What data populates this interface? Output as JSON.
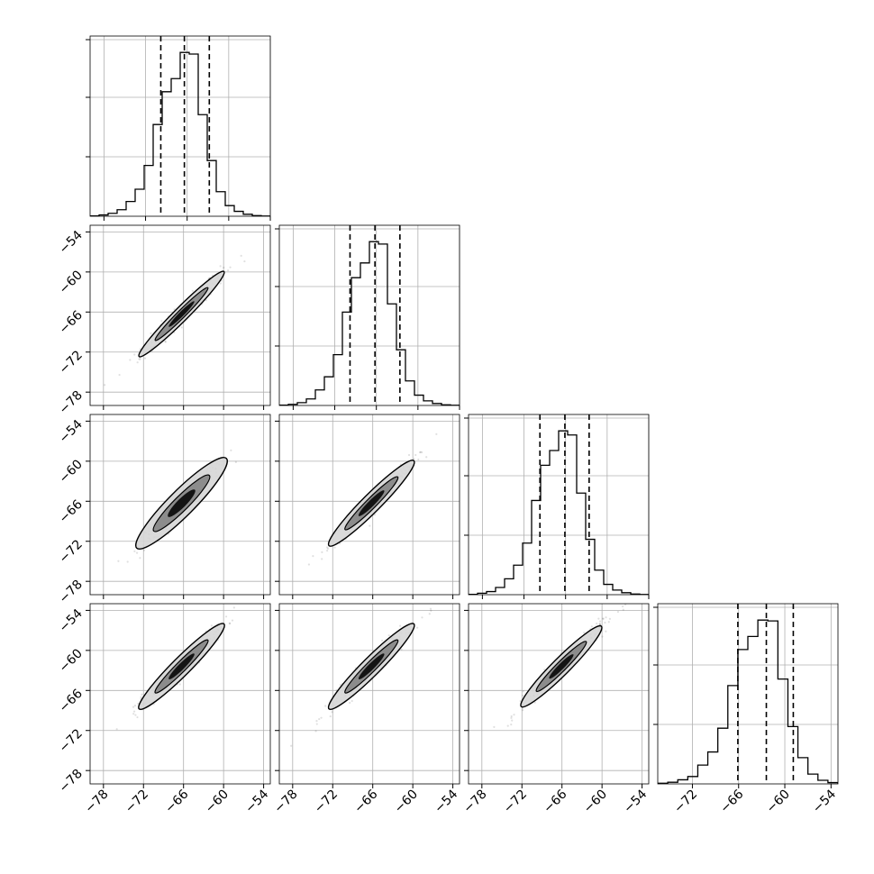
{
  "chart_data": {
    "type": "corner",
    "n_params": 4,
    "grid": true,
    "axis_range": [
      -80,
      -53
    ],
    "tick_values": [
      -78,
      -72,
      -66,
      -60,
      -54
    ],
    "tick_labels": [
      "−78",
      "−72",
      "−66",
      "−60",
      "−54"
    ],
    "quantile_lines": [
      [
        -69.8,
        -66.4,
        -62.8
      ],
      [
        -69.8,
        -66.2,
        -62.6
      ],
      [
        -69.7,
        -66.1,
        -62.6
      ],
      [
        -66.1,
        -62.4,
        -58.9
      ]
    ],
    "histograms": [
      {
        "bin_edges": [
          -80,
          -78.7,
          -77.4,
          -76.1,
          -74.8,
          -73.5,
          -72.2,
          -70.9,
          -69.6,
          -68.3,
          -67.0,
          -65.7,
          -64.4,
          -63.1,
          -61.8,
          -60.5,
          -59.2,
          -57.9,
          -56.6,
          -55.3,
          -54.0
        ],
        "counts": [
          2,
          8,
          18,
          40,
          90,
          165,
          310,
          560,
          760,
          840,
          1000,
          990,
          620,
          340,
          150,
          65,
          30,
          12,
          4,
          1
        ]
      },
      {
        "bin_edges": [
          -80,
          -78.7,
          -77.4,
          -76.1,
          -74.8,
          -73.5,
          -72.2,
          -70.9,
          -69.6,
          -68.3,
          -67.0,
          -65.7,
          -64.4,
          -63.1,
          -61.8,
          -60.5,
          -59.2,
          -57.9,
          -56.6,
          -55.3,
          -54.0
        ],
        "counts": [
          2,
          7,
          17,
          40,
          95,
          175,
          310,
          570,
          780,
          870,
          1000,
          985,
          620,
          340,
          150,
          63,
          28,
          12,
          4,
          1
        ]
      },
      {
        "bin_edges": [
          -80,
          -78.7,
          -77.4,
          -76.1,
          -74.8,
          -73.5,
          -72.2,
          -70.9,
          -69.6,
          -68.3,
          -67.0,
          -65.7,
          -64.4,
          -63.1,
          -61.8,
          -60.5,
          -59.2,
          -57.9,
          -56.6,
          -55.3,
          -54.0
        ],
        "counts": [
          2,
          9,
          19,
          44,
          97,
          180,
          315,
          575,
          790,
          880,
          1000,
          975,
          620,
          338,
          150,
          63,
          28,
          12,
          4,
          1
        ]
      },
      {
        "bin_edges": [
          -76.5,
          -75.2,
          -73.9,
          -72.6,
          -71.3,
          -70.0,
          -68.7,
          -67.4,
          -66.1,
          -64.8,
          -63.5,
          -62.2,
          -60.9,
          -59.6,
          -58.3,
          -57.0,
          -55.7,
          -54.4,
          -53.1
        ],
        "counts": [
          4,
          10,
          25,
          45,
          115,
          195,
          340,
          600,
          820,
          900,
          1000,
          995,
          640,
          350,
          160,
          60,
          22,
          8
        ]
      }
    ],
    "contour_ellipses": [
      {
        "row": 1,
        "col": 0,
        "center": [
          -66.3,
          -66.3
        ],
        "half_length": 9.0,
        "half_width": 0.65
      },
      {
        "row": 2,
        "col": 0,
        "center": [
          -66.3,
          -66.3
        ],
        "half_length": 9.5,
        "half_width": 1.2
      },
      {
        "row": 2,
        "col": 1,
        "center": [
          -66.2,
          -66.3
        ],
        "half_length": 9.0,
        "half_width": 0.85
      },
      {
        "row": 3,
        "col": 0,
        "center": [
          -66.3,
          -62.4
        ],
        "half_length": 9.0,
        "half_width": 0.85
      },
      {
        "row": 3,
        "col": 1,
        "center": [
          -66.2,
          -62.4
        ],
        "half_length": 9.0,
        "half_width": 0.85
      },
      {
        "row": 3,
        "col": 2,
        "center": [
          -66.1,
          -62.4
        ],
        "half_length": 8.5,
        "half_width": 0.8
      }
    ],
    "labels": {
      "x_ticks": [
        "−78",
        "−72",
        "−66",
        "−60",
        "−54"
      ],
      "y_ticks": [
        "−54",
        "−60",
        "−66",
        "−72",
        "−78"
      ]
    }
  }
}
